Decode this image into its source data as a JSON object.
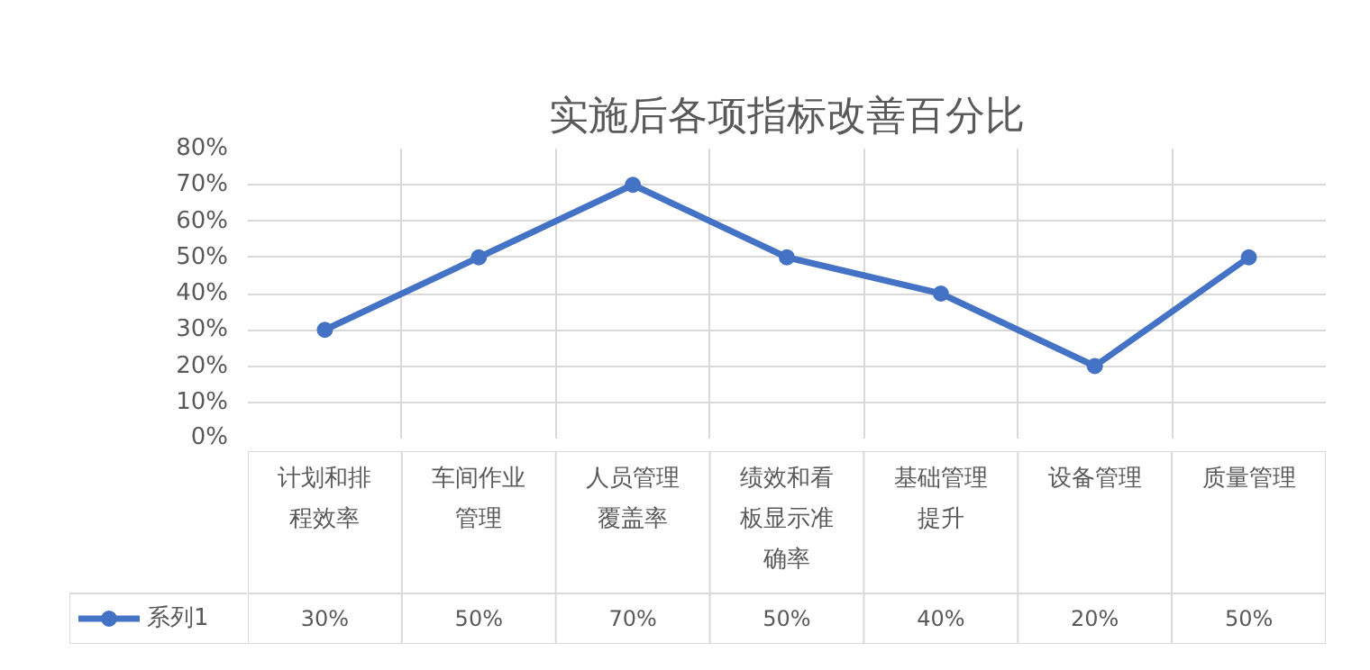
{
  "chart_data": {
    "type": "line",
    "title": "实施后各项指标改善百分比",
    "categories": [
      "计划和排程效率",
      "车间作业管理",
      "人员管理覆盖率",
      "绩效和看板显示准确率",
      "基础管理提升",
      "设备管理",
      "质量管理"
    ],
    "series": [
      {
        "name": "系列1",
        "color": "#4472c4",
        "values": [
          30,
          50,
          70,
          50,
          40,
          20,
          50
        ],
        "value_labels": [
          "30%",
          "50%",
          "70%",
          "50%",
          "40%",
          "20%",
          "50%"
        ]
      }
    ],
    "ylim": [
      0,
      80
    ],
    "yticks": [
      {
        "value": 0,
        "label": "0%"
      },
      {
        "value": 10,
        "label": "10%"
      },
      {
        "value": 20,
        "label": "20%"
      },
      {
        "value": 30,
        "label": "30%"
      },
      {
        "value": 40,
        "label": "40%"
      },
      {
        "value": 50,
        "label": "50%"
      },
      {
        "value": 60,
        "label": "60%"
      },
      {
        "value": 70,
        "label": "70%"
      },
      {
        "value": 80,
        "label": "80%"
      }
    ],
    "grid": true,
    "legend": "bottom",
    "marker": "circle",
    "line_style": "solid"
  }
}
